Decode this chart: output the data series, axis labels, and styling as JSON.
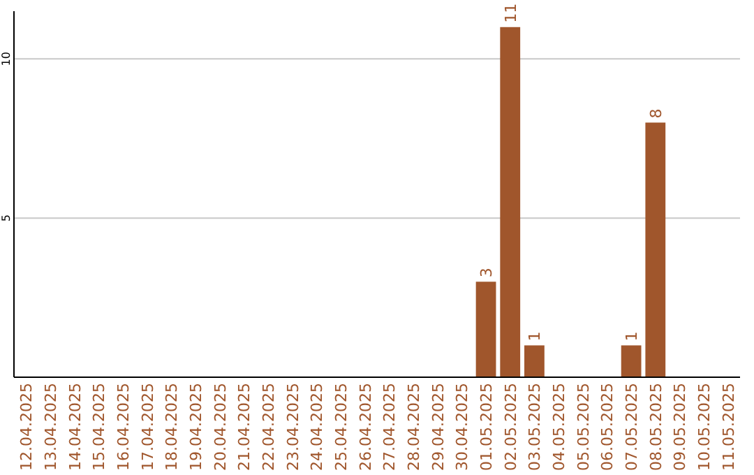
{
  "chart_data": {
    "type": "bar",
    "categories": [
      "12.04.2025",
      "13.04.2025",
      "14.04.2025",
      "15.04.2025",
      "16.04.2025",
      "17.04.2025",
      "18.04.2025",
      "19.04.2025",
      "20.04.2025",
      "21.04.2025",
      "22.04.2025",
      "23.04.2025",
      "24.04.2025",
      "25.04.2025",
      "26.04.2025",
      "27.04.2025",
      "28.04.2025",
      "29.04.2025",
      "30.04.2025",
      "01.05.2025",
      "02.05.2025",
      "03.05.2025",
      "04.05.2025",
      "05.05.2025",
      "06.05.2025",
      "07.05.2025",
      "08.05.2025",
      "09.05.2025",
      "10.05.2025",
      "11.05.2025"
    ],
    "values": [
      0,
      0,
      0,
      0,
      0,
      0,
      0,
      0,
      0,
      0,
      0,
      0,
      0,
      0,
      0,
      0,
      0,
      0,
      0,
      3,
      11,
      1,
      0,
      0,
      0,
      1,
      8,
      0,
      0,
      0
    ],
    "value_labels": [
      null,
      null,
      null,
      null,
      null,
      null,
      null,
      null,
      null,
      null,
      null,
      null,
      null,
      null,
      null,
      null,
      null,
      null,
      null,
      "3",
      "11",
      "1",
      null,
      null,
      null,
      "1",
      "8",
      null,
      null,
      null
    ],
    "color": "#a0562c",
    "ylim": [
      0,
      11.5
    ],
    "yticks": [
      5,
      10
    ],
    "grid": "y"
  }
}
